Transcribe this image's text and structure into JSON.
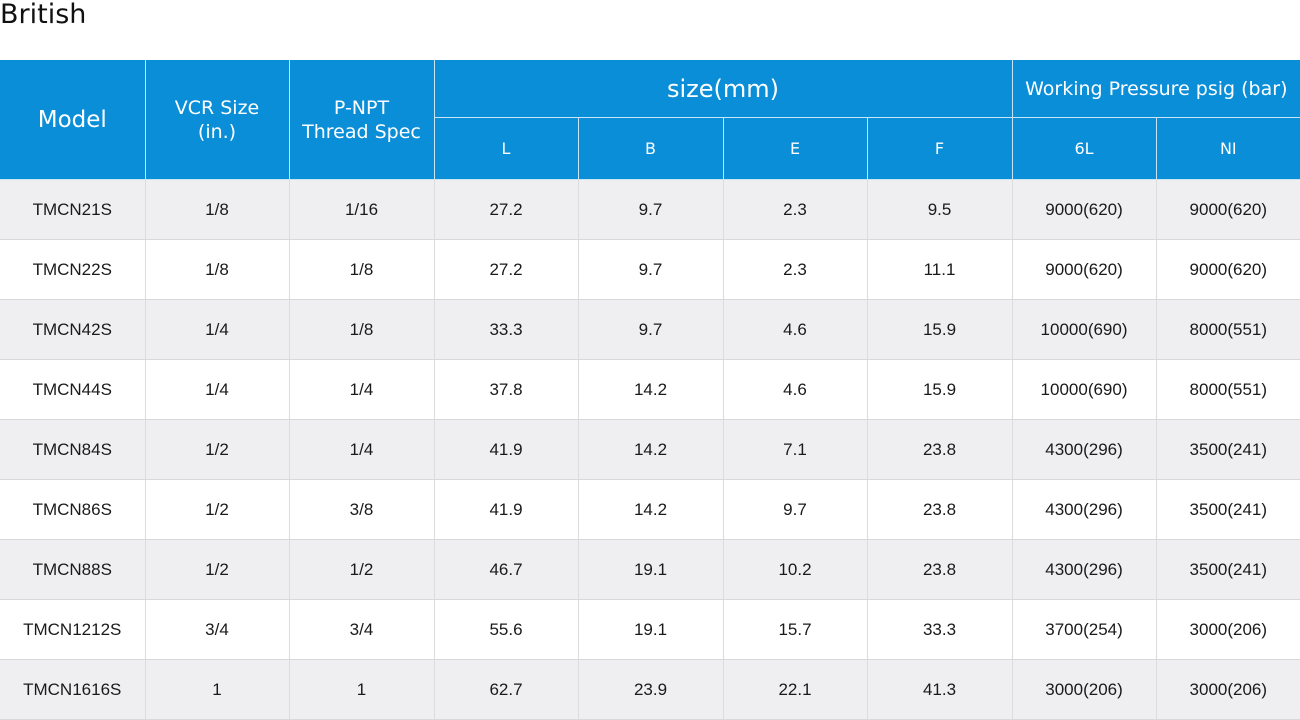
{
  "title": "British",
  "headers": {
    "model": "Model",
    "vcr_size": "VCR Size\n(in.)",
    "vcr_line1": "VCR Size",
    "vcr_line2": "(in.)",
    "pnpt_line1": "P-NPT",
    "pnpt_line2": "Thread Spec",
    "size_group": "size(mm)",
    "pressure_group": "Working Pressure psig (bar)",
    "size_cols": [
      "L",
      "B",
      "E",
      "F"
    ],
    "pressure_cols": [
      "6L",
      "NI"
    ]
  },
  "rows": [
    [
      "TMCN21S",
      "1/8",
      "1/16",
      "27.2",
      "9.7",
      "2.3",
      "9.5",
      "9000(620)",
      "9000(620)"
    ],
    [
      "TMCN22S",
      "1/8",
      "1/8",
      "27.2",
      "9.7",
      "2.3",
      "11.1",
      "9000(620)",
      "9000(620)"
    ],
    [
      "TMCN42S",
      "1/4",
      "1/8",
      "33.3",
      "9.7",
      "4.6",
      "15.9",
      "10000(690)",
      "8000(551)"
    ],
    [
      "TMCN44S",
      "1/4",
      "1/4",
      "37.8",
      "14.2",
      "4.6",
      "15.9",
      "10000(690)",
      "8000(551)"
    ],
    [
      "TMCN84S",
      "1/2",
      "1/4",
      "41.9",
      "14.2",
      "7.1",
      "23.8",
      "4300(296)",
      "3500(241)"
    ],
    [
      "TMCN86S",
      "1/2",
      "3/8",
      "41.9",
      "14.2",
      "9.7",
      "23.8",
      "4300(296)",
      "3500(241)"
    ],
    [
      "TMCN88S",
      "1/2",
      "1/2",
      "46.7",
      "19.1",
      "10.2",
      "23.8",
      "4300(296)",
      "3500(241)"
    ],
    [
      "TMCN1212S",
      "3/4",
      "3/4",
      "55.6",
      "19.1",
      "15.7",
      "33.3",
      "3700(254)",
      "3000(206)"
    ],
    [
      "TMCN1616S",
      "1",
      "1",
      "62.7",
      "23.9",
      "22.1",
      "41.3",
      "3000(206)",
      "3000(206)"
    ]
  ],
  "colors": {
    "header_bg": "#0a8ed8",
    "row_alt_bg": "#efeff1"
  }
}
